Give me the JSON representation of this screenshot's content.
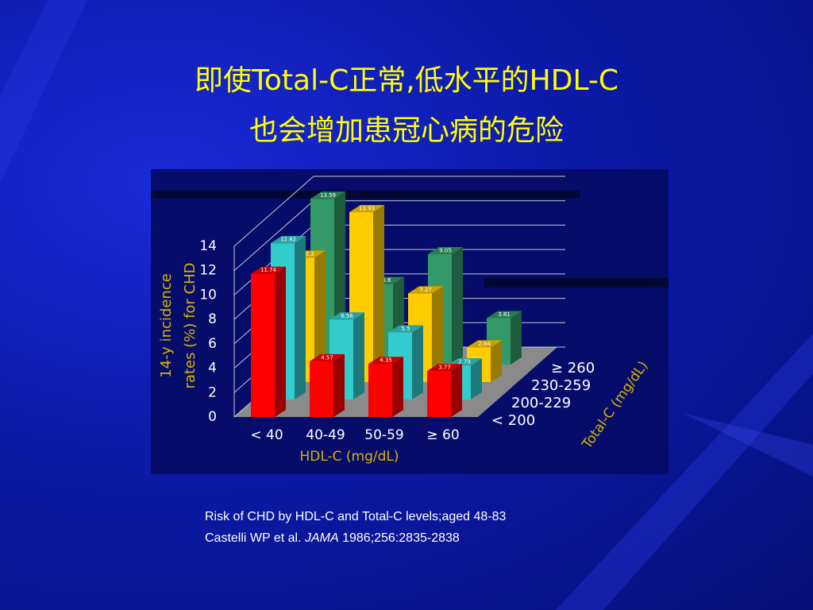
{
  "slide": {
    "title_lines": [
      "即使Total-C正常,低水平的HDL-C",
      "也会增加患冠心病的危险"
    ]
  },
  "caption": {
    "line1": "Risk of CHD by HDL-C and Total-C levels;aged 48-83",
    "line2": [
      "Castelli WP et al. ",
      "JAMA",
      " 1986;256:2835-2838"
    ]
  },
  "chart_data": {
    "type": "bar3d",
    "ylabel": [
      "14-y incidence",
      "rates (%) for CHD"
    ],
    "xlabel": "HDL-C (mg/dL)",
    "zlabel": "Total-C (mg/dL)",
    "categories": [
      "< 40",
      "40-49",
      "50-59",
      "≥ 60"
    ],
    "series": [
      {
        "name": "< 200",
        "color": "#ff0000",
        "values": [
          11.74,
          4.57,
          4.35,
          3.77
        ]
      },
      {
        "name": "200-229",
        "color": "#33cccc",
        "values": [
          12.82,
          6.56,
          5.5,
          2.79
        ]
      },
      {
        "name": "230-259",
        "color": "#ffcc00",
        "values": [
          10.2,
          13.93,
          7.27,
          2.84
        ]
      },
      {
        "name": "≥ 260",
        "color": "#339966",
        "values": [
          13.59,
          6.6,
          9.05,
          3.81
        ]
      }
    ],
    "ylim": [
      0,
      14
    ],
    "yticks": [
      0,
      2,
      4,
      6,
      8,
      10,
      12,
      14
    ],
    "grid": true
  }
}
